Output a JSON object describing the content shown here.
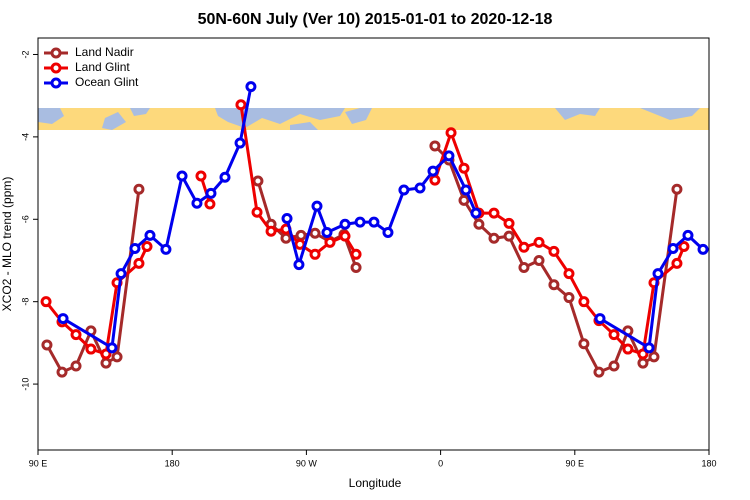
{
  "chart_data": {
    "type": "line",
    "title": "50N-60N July (Ver 10)   2015-01-01 to 2020-12-18",
    "x_label": "Longitude",
    "y_label": "XCO2 - MLO trend (ppm)",
    "xlim": [
      90,
      540
    ],
    "ylim": [
      -11.6,
      -1.6
    ],
    "xticks": [
      {
        "value": 90,
        "label": "90 E"
      },
      {
        "value": 180,
        "label": "180"
      },
      {
        "value": 270,
        "label": "90 W"
      },
      {
        "value": 360,
        "label": "0"
      },
      {
        "value": 450,
        "label": "90 E"
      },
      {
        "value": 540,
        "label": "180"
      }
    ],
    "yticks": [
      -2,
      -4,
      -6,
      -8,
      -10
    ],
    "legend": "top-left",
    "series": [
      {
        "name": "Land Nadir",
        "color": "#a52a2a",
        "x": [
          96.0,
          106.1,
          115.5,
          125.5,
          135.6,
          143.0,
          157.7,
          null,
          237.5,
          246.3,
          256.3,
          266.4,
          275.8,
          285.8,
          295.2,
          303.3,
          null,
          356.2,
          365.6,
          375.7,
          385.7,
          395.8,
          405.9,
          415.9,
          426.0,
          436.0,
          446.1,
          456.1,
          466.2,
          476.3,
          485.6,
          495.7,
          503.1,
          518.5
        ],
        "values": [
          -9.05,
          -9.71,
          -9.56,
          -8.71,
          -9.49,
          -9.34,
          -5.27,
          null,
          -5.07,
          -6.12,
          -6.46,
          -6.39,
          -6.34,
          -6.54,
          -6.37,
          -7.17,
          null,
          -4.22,
          -4.56,
          -5.54,
          -6.12,
          -6.46,
          -6.41,
          -7.17,
          -7.0,
          -7.59,
          -7.9,
          -9.02,
          -9.71,
          -9.56,
          -8.71,
          -9.49,
          -9.34,
          -5.27
        ]
      },
      {
        "name": "Land Glint",
        "color": "#ee0000",
        "x": [
          95.4,
          106.1,
          115.5,
          125.5,
          135.6,
          143.0,
          157.7,
          163.1,
          null,
          199.3,
          205.3,
          null,
          226.1,
          236.9,
          246.3,
          256.3,
          265.7,
          275.8,
          285.8,
          295.9,
          303.3,
          null,
          356.2,
          367.0,
          375.7,
          385.7,
          395.8,
          405.9,
          415.9,
          426.0,
          436.0,
          446.1,
          456.1,
          466.2,
          476.3,
          485.6,
          495.7,
          503.1,
          518.5,
          523.2
        ],
        "values": [
          -8.0,
          -8.49,
          -8.8,
          -9.15,
          -9.27,
          -7.54,
          -7.07,
          -6.66,
          null,
          -4.95,
          -5.63,
          null,
          -3.22,
          -5.83,
          -6.29,
          -6.24,
          -6.61,
          -6.85,
          -6.56,
          -6.41,
          -6.85,
          null,
          -5.05,
          -3.9,
          -4.76,
          -5.85,
          -5.85,
          -6.1,
          -6.68,
          -6.56,
          -6.78,
          -7.32,
          -8.0,
          -8.46,
          -8.8,
          -9.15,
          -9.27,
          -7.54,
          -7.07,
          -6.66
        ]
      },
      {
        "name": "Ocean Glint",
        "color": "#0000ee",
        "x": [
          106.8,
          139.6,
          145.7,
          155.0,
          165.1,
          175.8,
          186.6,
          196.6,
          206.0,
          215.4,
          225.5,
          232.8,
          null,
          257.0,
          265.0,
          277.1,
          283.8,
          295.9,
          306.0,
          315.3,
          324.7,
          335.4,
          346.2,
          354.9,
          365.6,
          377.0,
          383.7,
          null,
          466.9,
          499.8,
          505.8,
          515.9,
          525.9,
          536.0
        ],
        "values": [
          -8.41,
          -9.12,
          -7.32,
          -6.71,
          -6.39,
          -6.73,
          -4.95,
          -5.61,
          -5.37,
          -4.98,
          -4.15,
          -2.78,
          null,
          -5.98,
          -7.1,
          -5.68,
          -6.32,
          -6.12,
          -6.07,
          -6.07,
          -6.32,
          -5.29,
          -5.24,
          -4.83,
          -4.46,
          -5.29,
          -5.85,
          null,
          -8.41,
          -9.12,
          -7.32,
          -6.71,
          -6.39,
          -6.73
        ]
      }
    ]
  }
}
